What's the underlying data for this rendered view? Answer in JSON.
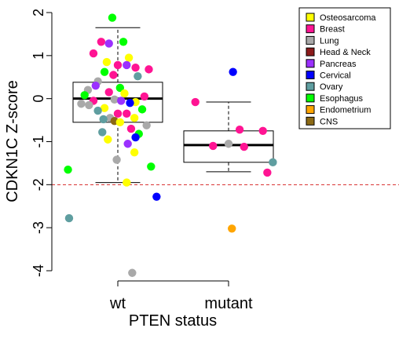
{
  "chart_data": {
    "type": "box+scatter",
    "xlabel": "PTEN status",
    "ylabel": "CDKN1C Z-score",
    "categories": [
      "wt",
      "mutant"
    ],
    "ylim": [
      -4,
      2
    ],
    "yticks": [
      {
        "value": 2,
        "label": "2"
      },
      {
        "value": 1,
        "label": "1"
      },
      {
        "value": 0,
        "label": "0"
      },
      {
        "value": -1,
        "label": "-1"
      },
      {
        "value": -2,
        "label": "-2"
      },
      {
        "value": -3,
        "label": "-3"
      },
      {
        "value": -4,
        "label": "-4"
      }
    ],
    "threshold": {
      "value": -2,
      "color": "#d62728",
      "style": "dashed"
    },
    "legend": {
      "position": "top-right",
      "items": [
        {
          "name": "Osteosarcoma",
          "color": "#ffff00"
        },
        {
          "name": "Breast",
          "color": "#ff1493"
        },
        {
          "name": "Lung",
          "color": "#a9a9a9"
        },
        {
          "name": "Head & Neck",
          "color": "#8b1a1a"
        },
        {
          "name": "Pancreas",
          "color": "#9b30ff"
        },
        {
          "name": "Cervical",
          "color": "#0000ff"
        },
        {
          "name": "Ovary",
          "color": "#5f9ea0"
        },
        {
          "name": "Esophagus",
          "color": "#00ff00"
        },
        {
          "name": "Endometrium",
          "color": "#ffa500"
        },
        {
          "name": "CNS",
          "color": "#8b6914"
        }
      ]
    },
    "boxes": [
      {
        "category": "wt",
        "min": -1.95,
        "q1": -0.55,
        "median": 0.0,
        "q3": 0.38,
        "max": 1.65
      },
      {
        "category": "mutant",
        "min": -1.7,
        "q1": -1.48,
        "median": -1.08,
        "q3": -0.75,
        "max": -0.08
      }
    ],
    "points": [
      {
        "group": "wt",
        "x": 0.95,
        "y": 1.88,
        "cancer": "Esophagus"
      },
      {
        "group": "wt",
        "x": 0.85,
        "y": 1.32,
        "cancer": "Breast"
      },
      {
        "group": "wt",
        "x": 0.92,
        "y": 1.28,
        "cancer": "Pancreas"
      },
      {
        "group": "wt",
        "x": 1.05,
        "y": 1.32,
        "cancer": "Esophagus"
      },
      {
        "group": "wt",
        "x": 0.78,
        "y": 1.05,
        "cancer": "Breast"
      },
      {
        "group": "wt",
        "x": 1.1,
        "y": 0.95,
        "cancer": "Osteosarcoma"
      },
      {
        "group": "wt",
        "x": 0.9,
        "y": 0.85,
        "cancer": "Osteosarcoma"
      },
      {
        "group": "wt",
        "x": 1.0,
        "y": 0.78,
        "cancer": "Breast"
      },
      {
        "group": "wt",
        "x": 1.08,
        "y": 0.78,
        "cancer": "Pancreas"
      },
      {
        "group": "wt",
        "x": 1.16,
        "y": 0.72,
        "cancer": "Breast"
      },
      {
        "group": "wt",
        "x": 1.28,
        "y": 0.68,
        "cancer": "Breast"
      },
      {
        "group": "wt",
        "x": 0.88,
        "y": 0.62,
        "cancer": "Esophagus"
      },
      {
        "group": "wt",
        "x": 0.96,
        "y": 0.55,
        "cancer": "Breast"
      },
      {
        "group": "wt",
        "x": 1.18,
        "y": 0.52,
        "cancer": "Ovary"
      },
      {
        "group": "wt",
        "x": 0.82,
        "y": 0.4,
        "cancer": "Lung"
      },
      {
        "group": "wt",
        "x": 0.8,
        "y": 0.3,
        "cancer": "Pancreas"
      },
      {
        "group": "wt",
        "x": 1.02,
        "y": 0.25,
        "cancer": "Esophagus"
      },
      {
        "group": "wt",
        "x": 0.73,
        "y": 0.2,
        "cancer": "Lung"
      },
      {
        "group": "wt",
        "x": 0.92,
        "y": 0.15,
        "cancer": "Breast"
      },
      {
        "group": "wt",
        "x": 1.06,
        "y": 0.12,
        "cancer": "Osteosarcoma"
      },
      {
        "group": "wt",
        "x": 1.24,
        "y": 0.05,
        "cancer": "Breast"
      },
      {
        "group": "wt",
        "x": 0.7,
        "y": 0.08,
        "cancer": "Esophagus"
      },
      {
        "group": "wt",
        "x": 0.78,
        "y": -0.05,
        "cancer": "Breast"
      },
      {
        "group": "wt",
        "x": 0.97,
        "y": -0.02,
        "cancer": "Lung"
      },
      {
        "group": "wt",
        "x": 1.03,
        "y": -0.05,
        "cancer": "Pancreas"
      },
      {
        "group": "wt",
        "x": 1.16,
        "y": -0.08,
        "cancer": "Osteosarcoma"
      },
      {
        "group": "wt",
        "x": 0.67,
        "y": -0.12,
        "cancer": "Lung"
      },
      {
        "group": "wt",
        "x": 0.74,
        "y": -0.15,
        "cancer": "Lung"
      },
      {
        "group": "wt",
        "x": 1.11,
        "y": -0.1,
        "cancer": "Cervical"
      },
      {
        "group": "wt",
        "x": 0.88,
        "y": -0.22,
        "cancer": "Osteosarcoma"
      },
      {
        "group": "wt",
        "x": 0.82,
        "y": -0.28,
        "cancer": "Ovary"
      },
      {
        "group": "wt",
        "x": 1.22,
        "y": -0.25,
        "cancer": "Esophagus"
      },
      {
        "group": "wt",
        "x": 1.0,
        "y": -0.35,
        "cancer": "Breast"
      },
      {
        "group": "wt",
        "x": 1.08,
        "y": -0.35,
        "cancer": "Breast"
      },
      {
        "group": "wt",
        "x": 0.93,
        "y": -0.45,
        "cancer": "Lung"
      },
      {
        "group": "wt",
        "x": 1.15,
        "y": -0.45,
        "cancer": "Osteosarcoma"
      },
      {
        "group": "wt",
        "x": 0.97,
        "y": -0.52,
        "cancer": "CNS"
      },
      {
        "group": "wt",
        "x": 0.87,
        "y": -0.48,
        "cancer": "Ovary"
      },
      {
        "group": "wt",
        "x": 1.02,
        "y": -0.55,
        "cancer": "Osteosarcoma"
      },
      {
        "group": "wt",
        "x": 1.26,
        "y": -0.62,
        "cancer": "Lung"
      },
      {
        "group": "wt",
        "x": 1.12,
        "y": -0.7,
        "cancer": "Breast"
      },
      {
        "group": "wt",
        "x": 0.86,
        "y": -0.78,
        "cancer": "Ovary"
      },
      {
        "group": "wt",
        "x": 1.19,
        "y": -0.82,
        "cancer": "Esophagus"
      },
      {
        "group": "wt",
        "x": 1.16,
        "y": -0.9,
        "cancer": "Cervical"
      },
      {
        "group": "wt",
        "x": 0.91,
        "y": -0.95,
        "cancer": "Osteosarcoma"
      },
      {
        "group": "wt",
        "x": 1.09,
        "y": -1.05,
        "cancer": "Pancreas"
      },
      {
        "group": "wt",
        "x": 1.15,
        "y": -1.25,
        "cancer": "Osteosarcoma"
      },
      {
        "group": "wt",
        "x": 0.99,
        "y": -1.42,
        "cancer": "Lung"
      },
      {
        "group": "wt",
        "x": 1.3,
        "y": -1.58,
        "cancer": "Esophagus"
      },
      {
        "group": "wt",
        "x": 0.55,
        "y": -1.65,
        "cancer": "Esophagus"
      },
      {
        "group": "wt",
        "x": 1.08,
        "y": -1.95,
        "cancer": "Osteosarcoma"
      },
      {
        "group": "wt",
        "x": 1.35,
        "y": -2.28,
        "cancer": "Cervical"
      },
      {
        "group": "wt",
        "x": 0.56,
        "y": -2.78,
        "cancer": "Ovary"
      },
      {
        "group": "wt",
        "x": 1.13,
        "y": -4.05,
        "cancer": "Lung"
      },
      {
        "group": "mutant",
        "x": 2.04,
        "y": 0.62,
        "cancer": "Cervical"
      },
      {
        "group": "mutant",
        "x": 1.7,
        "y": -0.08,
        "cancer": "Breast"
      },
      {
        "group": "mutant",
        "x": 2.1,
        "y": -0.72,
        "cancer": "Breast"
      },
      {
        "group": "mutant",
        "x": 2.31,
        "y": -0.75,
        "cancer": "Breast"
      },
      {
        "group": "mutant",
        "x": 1.86,
        "y": -1.1,
        "cancer": "Breast"
      },
      {
        "group": "mutant",
        "x": 2.0,
        "y": -1.05,
        "cancer": "Lung"
      },
      {
        "group": "mutant",
        "x": 2.14,
        "y": -1.12,
        "cancer": "Breast"
      },
      {
        "group": "mutant",
        "x": 2.4,
        "y": -1.48,
        "cancer": "Ovary"
      },
      {
        "group": "mutant",
        "x": 2.35,
        "y": -1.72,
        "cancer": "Breast"
      },
      {
        "group": "mutant",
        "x": 2.03,
        "y": -3.02,
        "cancer": "Endometrium"
      }
    ]
  }
}
